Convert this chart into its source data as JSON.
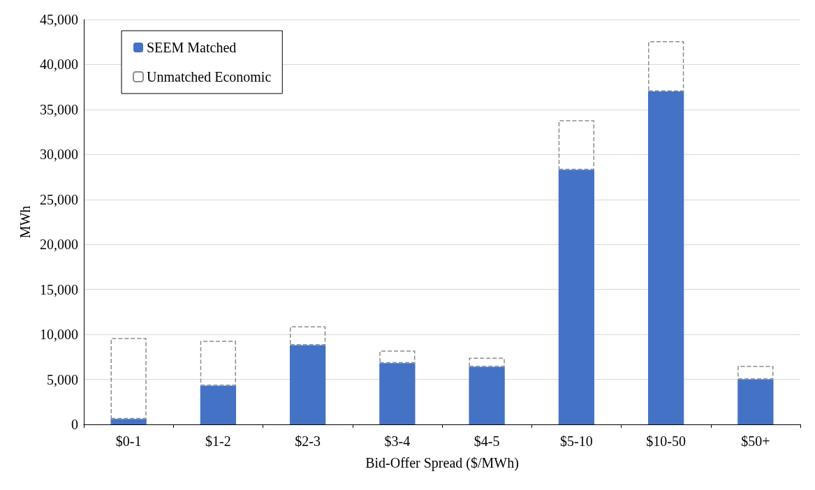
{
  "chart_data": {
    "type": "bar",
    "stacked": true,
    "xlabel": "Bid-Offer Spread ($/MWh)",
    "ylabel": "MWh",
    "categories": [
      "$0-1",
      "$1-2",
      "$2-3",
      "$3-4",
      "$4-5",
      "$5-10",
      "$10-50",
      "$50+"
    ],
    "series": [
      {
        "name": "SEEM Matched",
        "color": "#4472c4",
        "values": [
          600,
          4300,
          8800,
          6800,
          6400,
          28300,
          37000,
          5000
        ]
      },
      {
        "name": "Unmatched Economic",
        "color": "#8c8c8c",
        "line_style": "dashed",
        "values": [
          9000,
          5000,
          2100,
          1400,
          1000,
          5500,
          5600,
          1500
        ]
      }
    ],
    "ylim": [
      0,
      45000
    ],
    "yticks": [
      0,
      {
        "value": 5000,
        "label": "5,000"
      },
      {
        "value": 10000,
        "label": "10,000"
      },
      {
        "value": 15000,
        "label": "15,000"
      },
      {
        "value": 20000,
        "label": "20,000"
      },
      {
        "value": 25000,
        "label": "25,000"
      },
      {
        "value": 30000,
        "label": "30,000"
      },
      {
        "value": 35000,
        "label": "35,000"
      },
      {
        "value": 40000,
        "label": "40,000"
      },
      {
        "value": 45000,
        "label": "45,000"
      }
    ],
    "grid": "y",
    "legend": "top left"
  }
}
